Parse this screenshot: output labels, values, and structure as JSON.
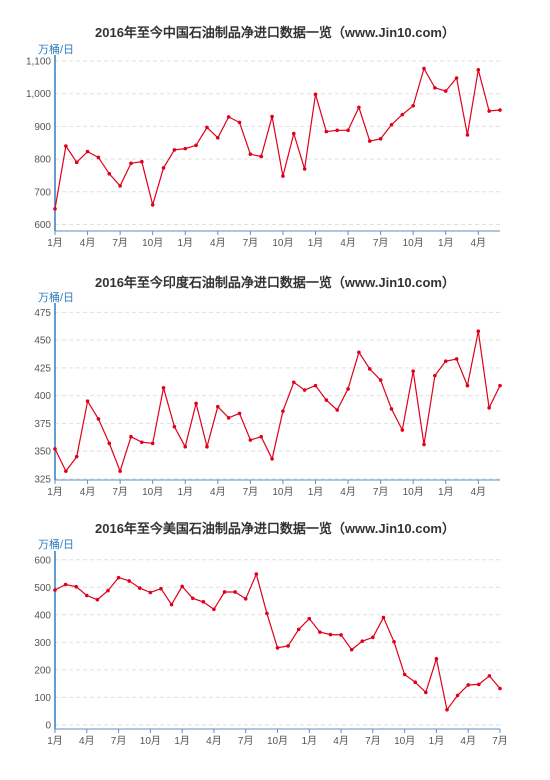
{
  "chart_data": [
    {
      "type": "line",
      "title": "2016年至今中国石油制品净进口数据一览（www.Jin10.com）",
      "ylabel": "万桶/日",
      "ylim": [
        580,
        1100
      ],
      "yticks": [
        600,
        700,
        800,
        900,
        1000,
        1100
      ],
      "ytick_labels": [
        "600",
        "700",
        "800",
        "900",
        "1,000",
        "1,100"
      ],
      "x_tick_labels": [
        "1月",
        "4月",
        "7月",
        "10月",
        "1月",
        "4月",
        "7月",
        "10月",
        "1月",
        "4月",
        "7月",
        "10月",
        "1月",
        "4月"
      ],
      "x_tick_indices": [
        0,
        3,
        6,
        9,
        12,
        15,
        18,
        21,
        24,
        27,
        30,
        33,
        36,
        39
      ],
      "series": [
        {
          "values": [
            648,
            840,
            790,
            823,
            805,
            755,
            718,
            787,
            792,
            660,
            773,
            828,
            832,
            842,
            897,
            865,
            929,
            912,
            815,
            808,
            930,
            748,
            878,
            770,
            998,
            884,
            888,
            888,
            958,
            855,
            862,
            905,
            936,
            963,
            1077,
            1018,
            1008,
            1048,
            874,
            1073,
            947,
            950
          ]
        }
      ]
    },
    {
      "type": "line",
      "title": "2016年至今印度石油制品净进口数据一览（www.Jin10.com）",
      "ylabel": "万桶/日",
      "ylim": [
        324,
        478
      ],
      "yticks": [
        325,
        350,
        375,
        400,
        425,
        450,
        475
      ],
      "ytick_labels": [
        "325",
        "350",
        "375",
        "400",
        "425",
        "450",
        "475"
      ],
      "x_tick_labels": [
        "1月",
        "4月",
        "7月",
        "10月",
        "1月",
        "4月",
        "7月",
        "10月",
        "1月",
        "4月",
        "7月",
        "10月",
        "1月",
        "4月"
      ],
      "x_tick_indices": [
        0,
        3,
        6,
        9,
        12,
        15,
        18,
        21,
        24,
        27,
        30,
        33,
        36,
        39
      ],
      "series": [
        {
          "values": [
            352,
            332,
            345,
            395,
            379,
            357,
            332,
            363,
            358,
            357,
            407,
            372,
            354,
            393,
            354,
            390,
            380,
            384,
            360,
            363,
            343,
            386,
            412,
            405,
            409,
            396,
            387,
            406,
            439,
            424,
            414,
            388,
            369,
            422,
            356,
            418,
            431,
            433,
            409,
            458,
            389,
            409
          ]
        }
      ]
    },
    {
      "type": "line",
      "title": "2016年至今美国石油制品净进口数据一览（www.Jin10.com）",
      "ylabel": "万桶/日",
      "ylim": [
        -15,
        610
      ],
      "yticks": [
        0,
        100,
        200,
        300,
        400,
        500,
        600
      ],
      "ytick_labels": [
        "0",
        "100",
        "200",
        "300",
        "400",
        "500",
        "600"
      ],
      "x_tick_labels": [
        "1月",
        "4月",
        "7月",
        "10月",
        "1月",
        "4月",
        "7月",
        "10月",
        "1月",
        "4月",
        "7月",
        "10月",
        "1月",
        "4月",
        "7月"
      ],
      "x_tick_indices": [
        0,
        3,
        6,
        9,
        12,
        15,
        18,
        21,
        24,
        27,
        30,
        33,
        36,
        39,
        42
      ],
      "series": [
        {
          "values": [
            490,
            510,
            502,
            470,
            455,
            488,
            535,
            523,
            497,
            481,
            495,
            437,
            503,
            460,
            447,
            420,
            483,
            483,
            458,
            548,
            405,
            280,
            287,
            347,
            386,
            337,
            328,
            327,
            273,
            304,
            318,
            390,
            302,
            183,
            155,
            118,
            240,
            55,
            107,
            145,
            147,
            178,
            132
          ]
        }
      ]
    }
  ]
}
